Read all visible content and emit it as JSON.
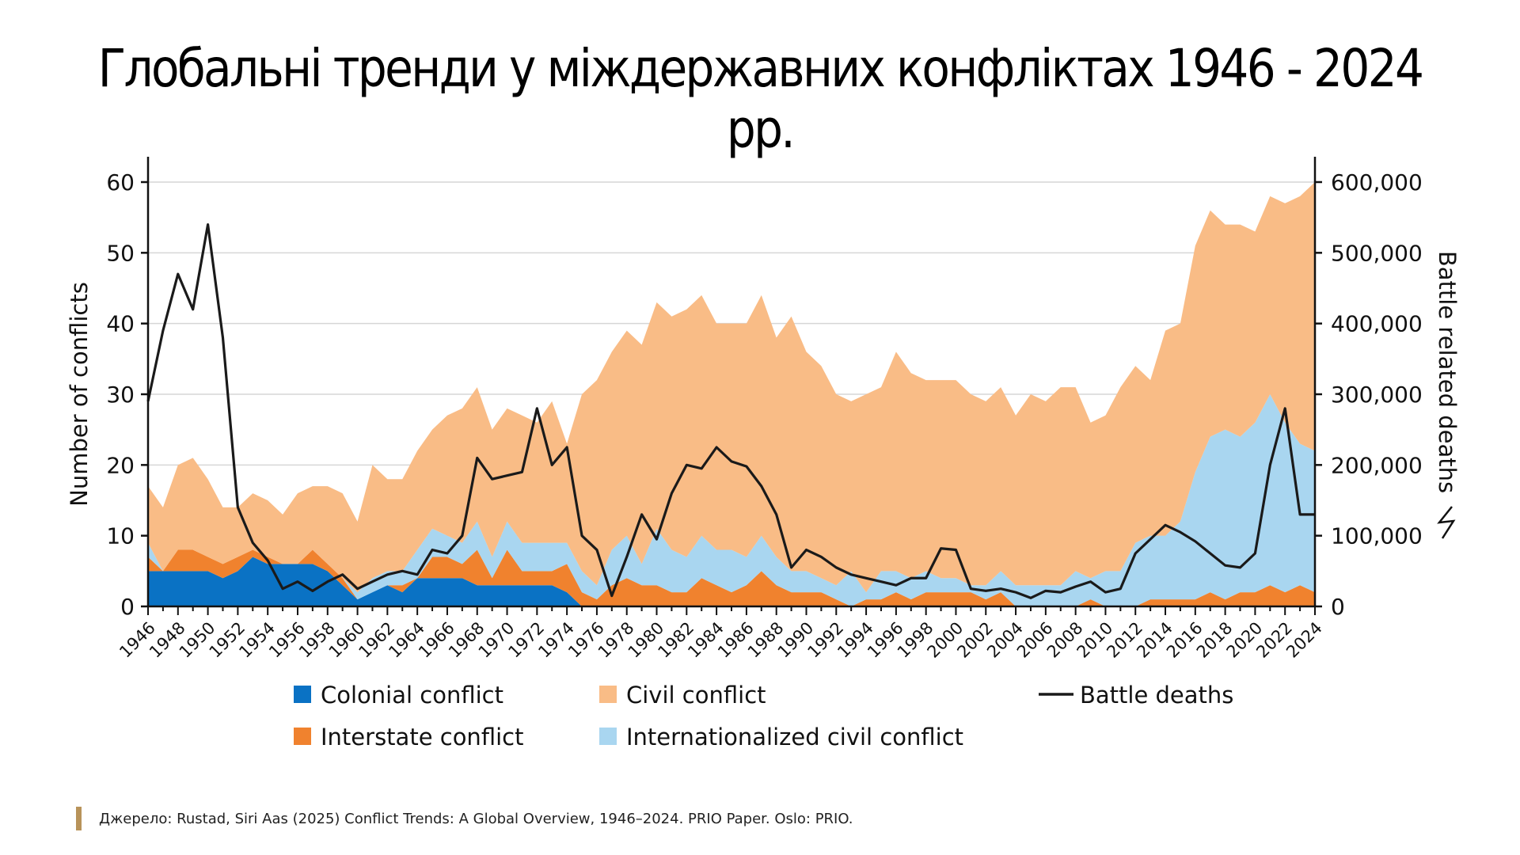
{
  "title": "Глобальні тренди у міждержавних конфліктах 1946 - 2024 рр.",
  "source": "Джерело: Rustad, Siri Aas (2025) Conflict Trends: A Global Overview, 1946–2024. PRIO Paper. Oslo: PRIO.",
  "colors": {
    "colonial": "#0a72c4",
    "interstate": "#f0822e",
    "civil": "#f9bc86",
    "internationalized": "#a9d6f0",
    "battle": "#1a1a1a",
    "grid": "#d6d6d6",
    "source_bar": "#b8935a"
  },
  "chart_data": {
    "type": "area",
    "stacked": true,
    "x_start": 1946,
    "x_end": 2024,
    "x_tick_labels": [
      "1946",
      "1948",
      "1950",
      "1952",
      "1954",
      "1956",
      "1958",
      "1960",
      "1962",
      "1964",
      "1966",
      "1968",
      "1970",
      "1972",
      "1974",
      "1976",
      "1978",
      "1980",
      "1982",
      "1984",
      "1986",
      "1988",
      "1990",
      "1992",
      "1994",
      "1996",
      "1998",
      "2000",
      "2002",
      "2004",
      "2006",
      "2008",
      "2010",
      "2012",
      "2014",
      "2016",
      "2018",
      "2020",
      "2022",
      "2024"
    ],
    "ylabel_left": "Number of conflicts",
    "ylabel_right": "Battle related deaths",
    "ylim_left": [
      0,
      60
    ],
    "ylim_right": [
      0,
      600000
    ],
    "y_ticks_left": [
      "0",
      "10",
      "20",
      "30",
      "40",
      "50",
      "60"
    ],
    "y_ticks_right": [
      "0",
      "100,000",
      "200,000",
      "300,000",
      "400,000",
      "500,000",
      "600,000"
    ],
    "grid": true,
    "legend_position": "bottom",
    "series": [
      {
        "name": "Colonial conflict",
        "kind": "stack",
        "values": [
          5,
          5,
          5,
          5,
          5,
          4,
          5,
          7,
          6,
          6,
          6,
          6,
          5,
          3,
          1,
          2,
          3,
          2,
          4,
          4,
          4,
          4,
          3,
          3,
          3,
          3,
          3,
          3,
          2,
          0,
          0,
          0,
          0,
          0,
          0,
          0,
          0,
          0,
          0,
          0,
          0,
          0,
          0,
          0,
          0,
          0,
          0,
          0,
          0,
          0,
          0,
          0,
          0,
          0,
          0,
          0,
          0,
          0,
          0,
          0,
          0,
          0,
          0,
          0,
          0,
          0,
          0,
          0,
          0,
          0,
          0,
          0,
          0,
          0,
          0,
          0,
          0,
          0,
          0
        ]
      },
      {
        "name": "Interstate conflict",
        "kind": "stack",
        "values": [
          2,
          0,
          3,
          3,
          2,
          2,
          2,
          1,
          1,
          0,
          0,
          2,
          1,
          1,
          0,
          0,
          0,
          1,
          0,
          3,
          3,
          2,
          5,
          1,
          5,
          2,
          2,
          2,
          4,
          2,
          1,
          3,
          4,
          3,
          3,
          2,
          2,
          4,
          3,
          2,
          3,
          5,
          3,
          2,
          2,
          2,
          1,
          0,
          1,
          1,
          2,
          1,
          2,
          2,
          2,
          2,
          1,
          2,
          0,
          0,
          0,
          0,
          0,
          1,
          0,
          0,
          0,
          1,
          1,
          1,
          1,
          2,
          1,
          2,
          2,
          3,
          2,
          3,
          2
        ]
      },
      {
        "name": "Internationalized civil conflict",
        "kind": "stack",
        "values": [
          2,
          0,
          0,
          0,
          0,
          0,
          0,
          0,
          0,
          0,
          0,
          0,
          0,
          0,
          1,
          2,
          2,
          2,
          4,
          4,
          3,
          3,
          4,
          3,
          4,
          4,
          4,
          4,
          3,
          3,
          2,
          5,
          6,
          3,
          8,
          6,
          5,
          6,
          5,
          6,
          4,
          5,
          4,
          3,
          3,
          2,
          2,
          5,
          1,
          4,
          3,
          3,
          3,
          2,
          2,
          1,
          2,
          3,
          3,
          3,
          3,
          3,
          5,
          3,
          5,
          5,
          9,
          9,
          9,
          11,
          18,
          22,
          24,
          22,
          24,
          27,
          24,
          20,
          20
        ]
      },
      {
        "name": "Civil conflict",
        "kind": "stack",
        "values": [
          8,
          9,
          12,
          13,
          11,
          8,
          7,
          8,
          8,
          7,
          10,
          9,
          11,
          12,
          10,
          16,
          13,
          13,
          14,
          14,
          17,
          19,
          19,
          18,
          16,
          18,
          17,
          20,
          14,
          25,
          29,
          28,
          29,
          31,
          32,
          33,
          35,
          34,
          32,
          32,
          33,
          34,
          31,
          36,
          31,
          30,
          27,
          24,
          28,
          26,
          31,
          29,
          27,
          28,
          28,
          27,
          26,
          26,
          24,
          27,
          26,
          28,
          26,
          22,
          22,
          26,
          25,
          22,
          29,
          28,
          32,
          32,
          29,
          30,
          27,
          28,
          31,
          35,
          38
        ]
      },
      {
        "name": "Battle deaths",
        "kind": "line",
        "axis": "right",
        "values": [
          290000,
          390000,
          470000,
          420000,
          540000,
          380000,
          140000,
          90000,
          65000,
          25000,
          35000,
          22000,
          35000,
          45000,
          25000,
          35000,
          45000,
          50000,
          45000,
          80000,
          75000,
          100000,
          210000,
          180000,
          185000,
          190000,
          280000,
          200000,
          225000,
          100000,
          80000,
          15000,
          70000,
          130000,
          95000,
          160000,
          200000,
          195000,
          225000,
          205000,
          198000,
          170000,
          130000,
          55000,
          80000,
          70000,
          55000,
          45000,
          40000,
          35000,
          30000,
          40000,
          40000,
          82000,
          80000,
          25000,
          22000,
          25000,
          20000,
          12000,
          22000,
          20000,
          28000,
          35000,
          20000,
          25000,
          75000,
          95000,
          115000,
          105000,
          92000,
          75000,
          58000,
          55000,
          75000,
          200000,
          280000,
          130000,
          130000
        ]
      }
    ]
  }
}
